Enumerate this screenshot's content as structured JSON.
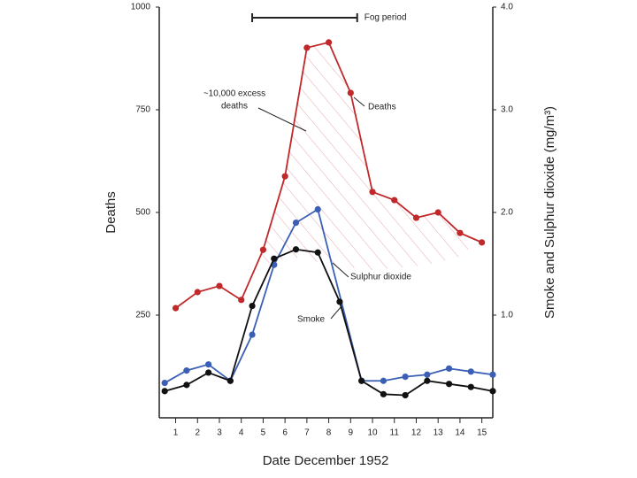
{
  "chart_data": {
    "type": "line",
    "xlabel": "Date December 1952",
    "ylabel": "Deaths",
    "y2label": "Smoke and Sulphur dioxide (mg/m³)",
    "xlim": [
      0.25,
      15.5
    ],
    "xticks": [
      1,
      2,
      3,
      4,
      5,
      6,
      7,
      8,
      9,
      10,
      11,
      12,
      13,
      14,
      15
    ],
    "ylim": [
      0,
      1000
    ],
    "yticks": [
      250,
      500,
      750,
      1000
    ],
    "y2lim": [
      0,
      4
    ],
    "y2ticks": [
      {
        "value": 1,
        "label": "1.0"
      },
      {
        "value": 2,
        "label": "2.0"
      },
      {
        "value": 3,
        "label": "3.0"
      },
      {
        "value": 4,
        "label": "4.0"
      }
    ],
    "fog_period": {
      "label": "Fog period",
      "start": 4.5,
      "end": 9.3
    },
    "annotation": [
      "~10,000 excess",
      "deaths"
    ],
    "series": [
      {
        "name": "Deaths",
        "color": "#c0282a",
        "axis": "y",
        "x": [
          1,
          2,
          3,
          4,
          5,
          6,
          7,
          8,
          9,
          10,
          11,
          12,
          13,
          14,
          15
        ],
        "values": [
          267,
          306,
          321,
          287,
          409,
          588,
          901,
          914,
          791,
          550,
          530,
          487,
          500,
          450,
          427
        ]
      },
      {
        "name": "Sulphur dioxide",
        "color": "#3b5fb5",
        "axis": "y2",
        "x": [
          0.5,
          1.5,
          2.5,
          3.5,
          4.5,
          5.5,
          6.5,
          7.5,
          9.5,
          10.5,
          11.5,
          12.5,
          13.5,
          14.5,
          15.5
        ],
        "values": [
          0.34,
          0.46,
          0.52,
          0.36,
          0.81,
          1.49,
          1.9,
          2.03,
          0.36,
          0.36,
          0.4,
          0.42,
          0.48,
          0.45,
          0.42
        ]
      },
      {
        "name": "Smoke",
        "color": "#111111",
        "axis": "y2",
        "x": [
          0.5,
          1.5,
          2.5,
          3.5,
          4.5,
          5.5,
          6.5,
          7.5,
          8.5,
          9.5,
          10.5,
          11.5,
          12.5,
          13.5,
          14.5,
          15.5
        ],
        "values": [
          0.26,
          0.32,
          0.44,
          0.36,
          1.09,
          1.55,
          1.64,
          1.61,
          1.13,
          0.36,
          0.23,
          0.22,
          0.36,
          0.33,
          0.3,
          0.26
        ]
      }
    ]
  }
}
